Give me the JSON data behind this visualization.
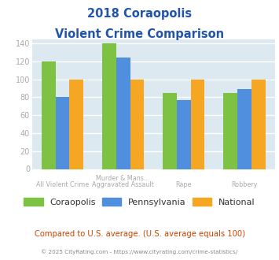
{
  "title_line1": "2018 Coraopolis",
  "title_line2": "Violent Crime Comparison",
  "cat_labels_bottom": [
    "All Violent Crime",
    "Aggravated Assault",
    "Rape",
    "Robbery"
  ],
  "cat_labels_top": [
    "",
    "Murder & Mans...",
    "",
    ""
  ],
  "series": {
    "Coraopolis": [
      120,
      140,
      85,
      85
    ],
    "Pennsylvania": [
      80,
      124,
      77,
      89
    ],
    "National": [
      100,
      100,
      100,
      100
    ]
  },
  "colors": {
    "Coraopolis": "#7dc242",
    "Pennsylvania": "#4f8fde",
    "National": "#f5a623"
  },
  "ylim": [
    0,
    145
  ],
  "yticks": [
    0,
    20,
    40,
    60,
    80,
    100,
    120,
    140
  ],
  "bg_color": "#dce9f0",
  "title_color": "#2255aa",
  "footer_text": "Compared to U.S. average. (U.S. average equals 100)",
  "credit_text": "© 2025 CityRating.com - https://www.cityrating.com/crime-statistics/",
  "footer_color": "#cc4400",
  "credit_color": "#888888",
  "grid_color": "#c8d8e8",
  "tick_label_color": "#aaaaaa",
  "bar_width": 0.23
}
